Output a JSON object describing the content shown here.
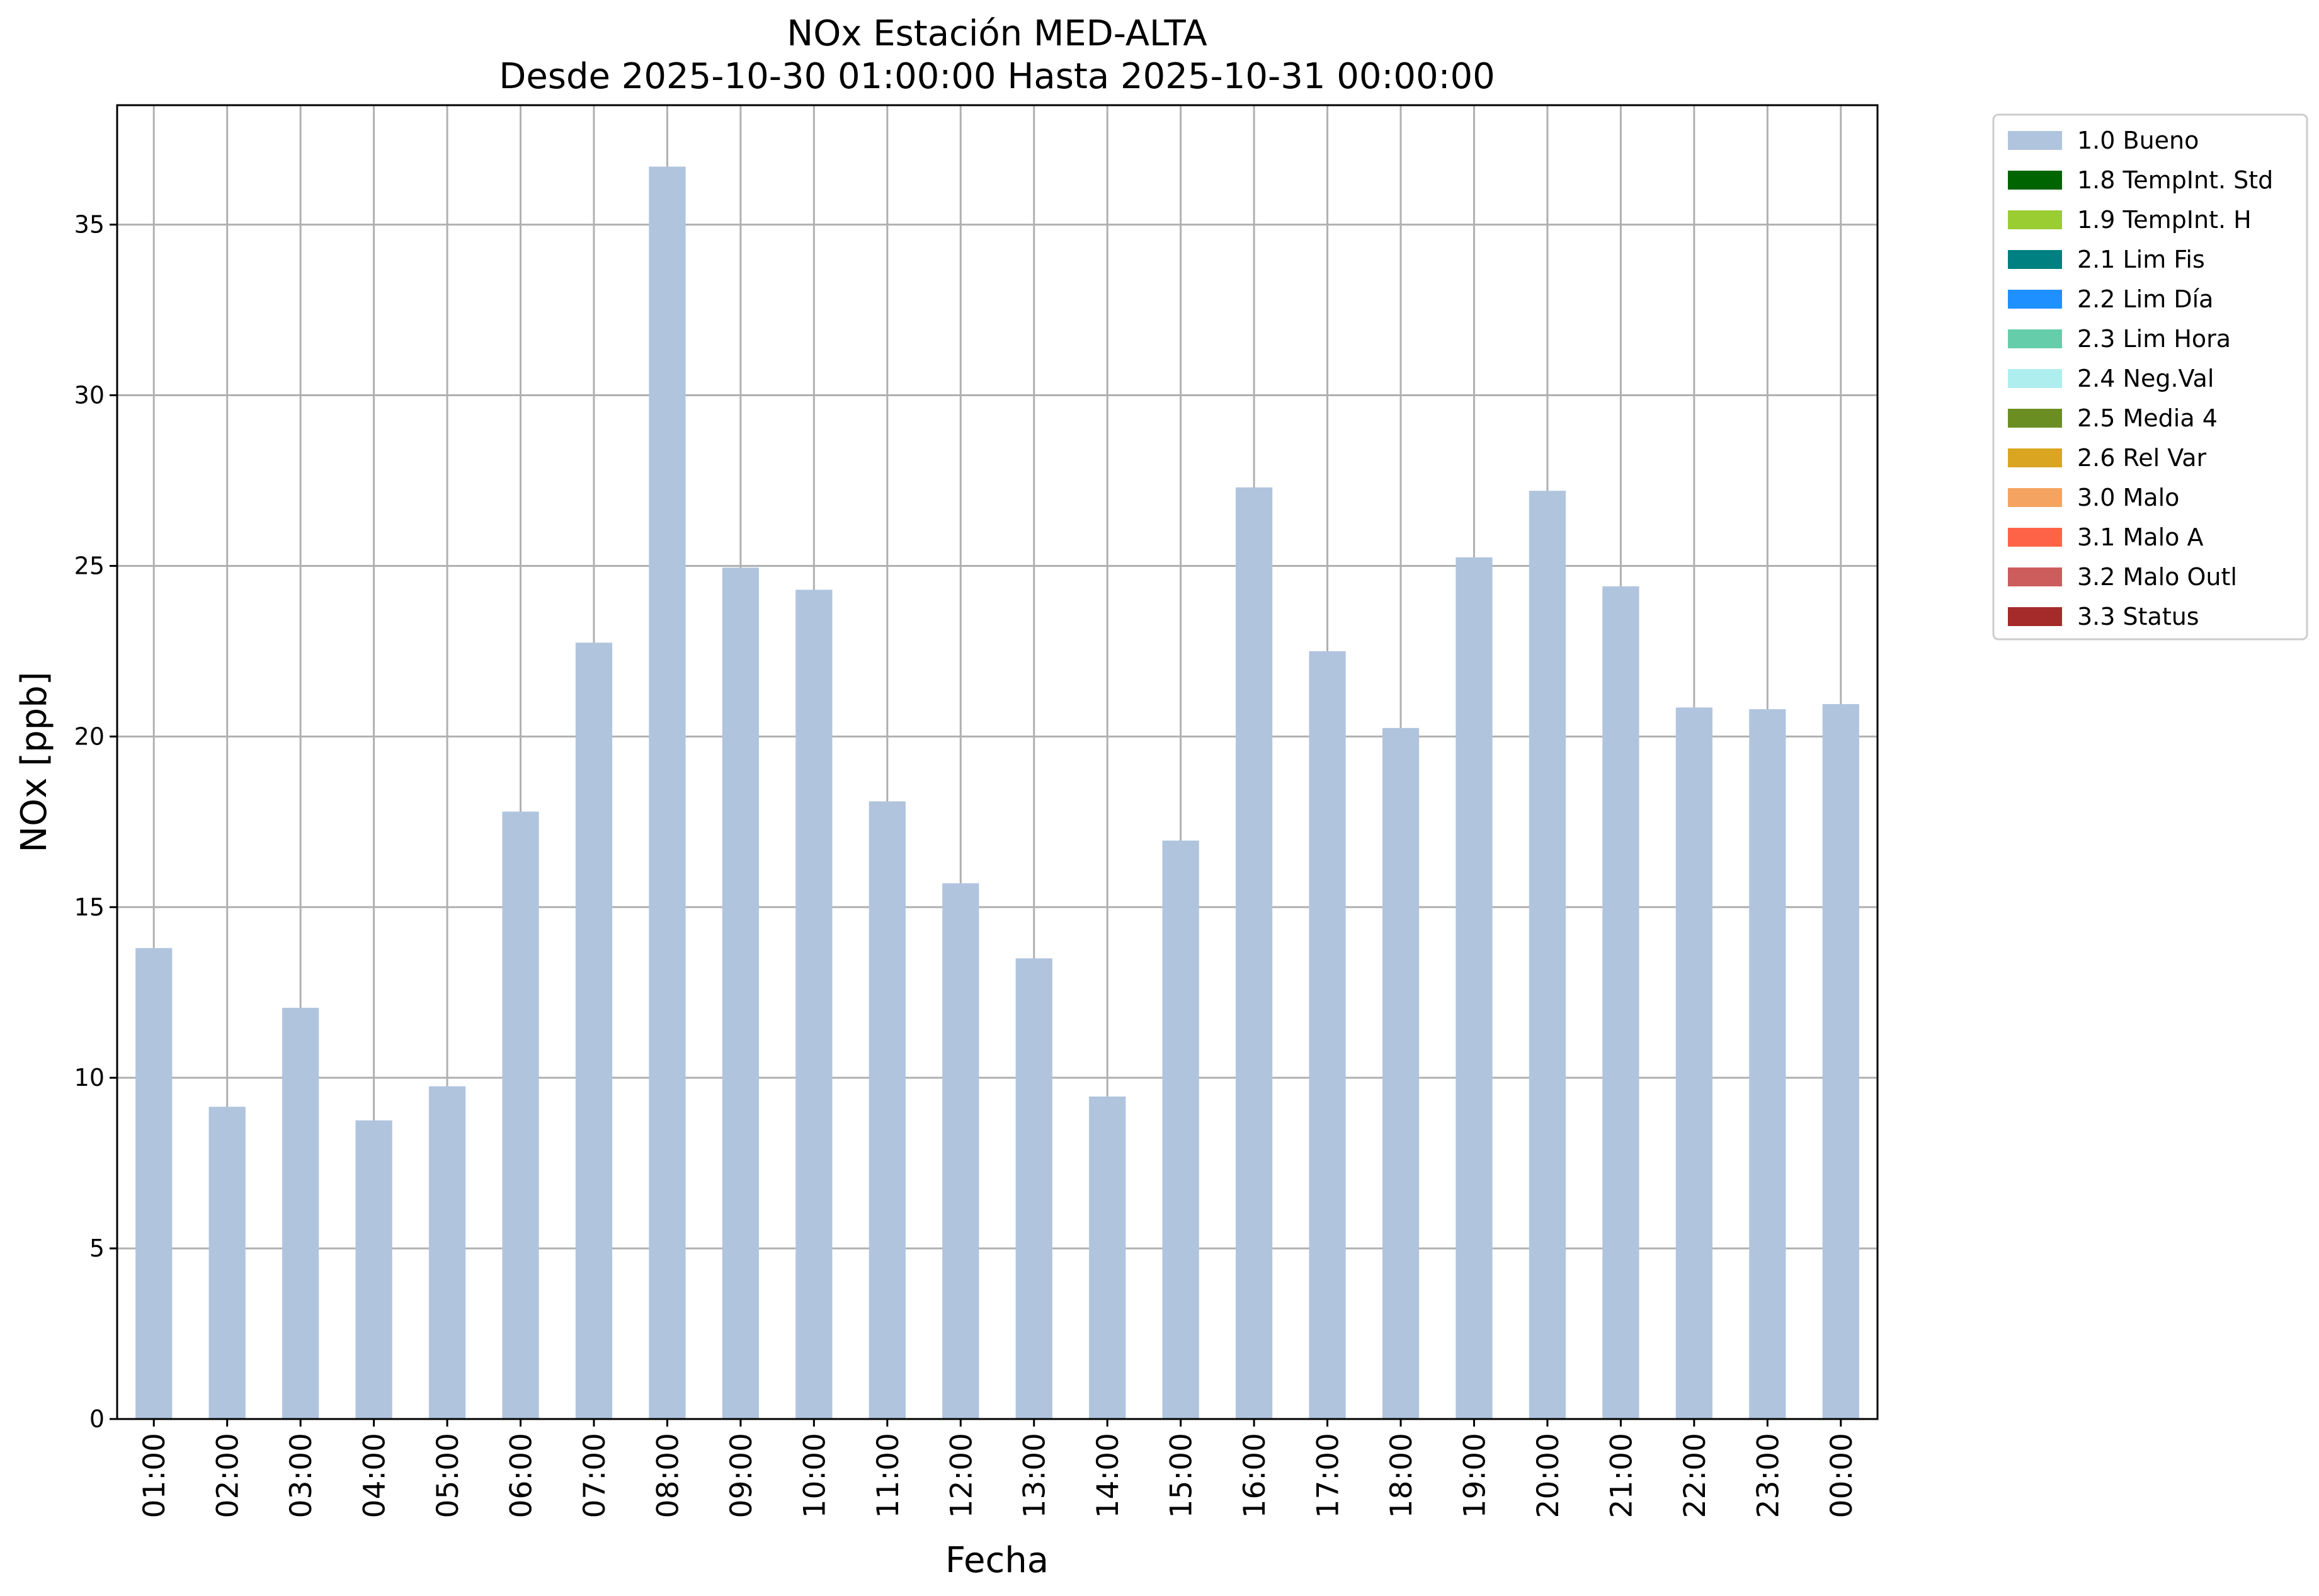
{
  "chart_data": {
    "type": "bar",
    "title": "NOx Estación MED-ALTA",
    "subtitle": "Desde 2025-10-30 01:00:00 Hasta 2025-10-31 00:00:00",
    "xlabel": "Fecha",
    "ylabel": "NOx [ppb]",
    "ylim": [
      0,
      38.5
    ],
    "yticks": [
      0,
      5,
      10,
      15,
      20,
      25,
      30,
      35
    ],
    "grid": true,
    "legend_position": "outside-right",
    "categories": [
      "01:00",
      "02:00",
      "03:00",
      "04:00",
      "05:00",
      "06:00",
      "07:00",
      "08:00",
      "09:00",
      "10:00",
      "11:00",
      "12:00",
      "13:00",
      "14:00",
      "15:00",
      "16:00",
      "17:00",
      "18:00",
      "19:00",
      "20:00",
      "21:00",
      "22:00",
      "23:00",
      "00:00"
    ],
    "series": [
      {
        "name": "1.0 Bueno",
        "color": "#b0c4de",
        "values": [
          13.8,
          9.15,
          12.05,
          8.75,
          9.75,
          17.8,
          22.75,
          36.7,
          24.95,
          24.3,
          18.1,
          15.7,
          13.5,
          9.45,
          16.95,
          27.3,
          22.5,
          20.25,
          25.25,
          27.2,
          24.4,
          20.85,
          20.8,
          20.95
        ]
      }
    ],
    "legend": [
      {
        "label": "1.0 Bueno",
        "color": "#b0c4de"
      },
      {
        "label": "1.8 TempInt. Std",
        "color": "#006400"
      },
      {
        "label": "1.9 TempInt. H",
        "color": "#9acd32"
      },
      {
        "label": "2.1 Lim Fis",
        "color": "#008080"
      },
      {
        "label": "2.2 Lim Día",
        "color": "#1e90ff"
      },
      {
        "label": "2.3 Lim Hora",
        "color": "#66cdaa"
      },
      {
        "label": "2.4 Neg.Val",
        "color": "#afeeee"
      },
      {
        "label": "2.5 Media 4",
        "color": "#6b8e23"
      },
      {
        "label": "2.6 Rel Var",
        "color": "#daa520"
      },
      {
        "label": "3.0 Malo",
        "color": "#f4a460"
      },
      {
        "label": "3.1 Malo A",
        "color": "#ff6347"
      },
      {
        "label": "3.2 Malo Outl",
        "color": "#cd5c5c"
      },
      {
        "label": "3.3 Status",
        "color": "#a52a2a"
      }
    ]
  }
}
